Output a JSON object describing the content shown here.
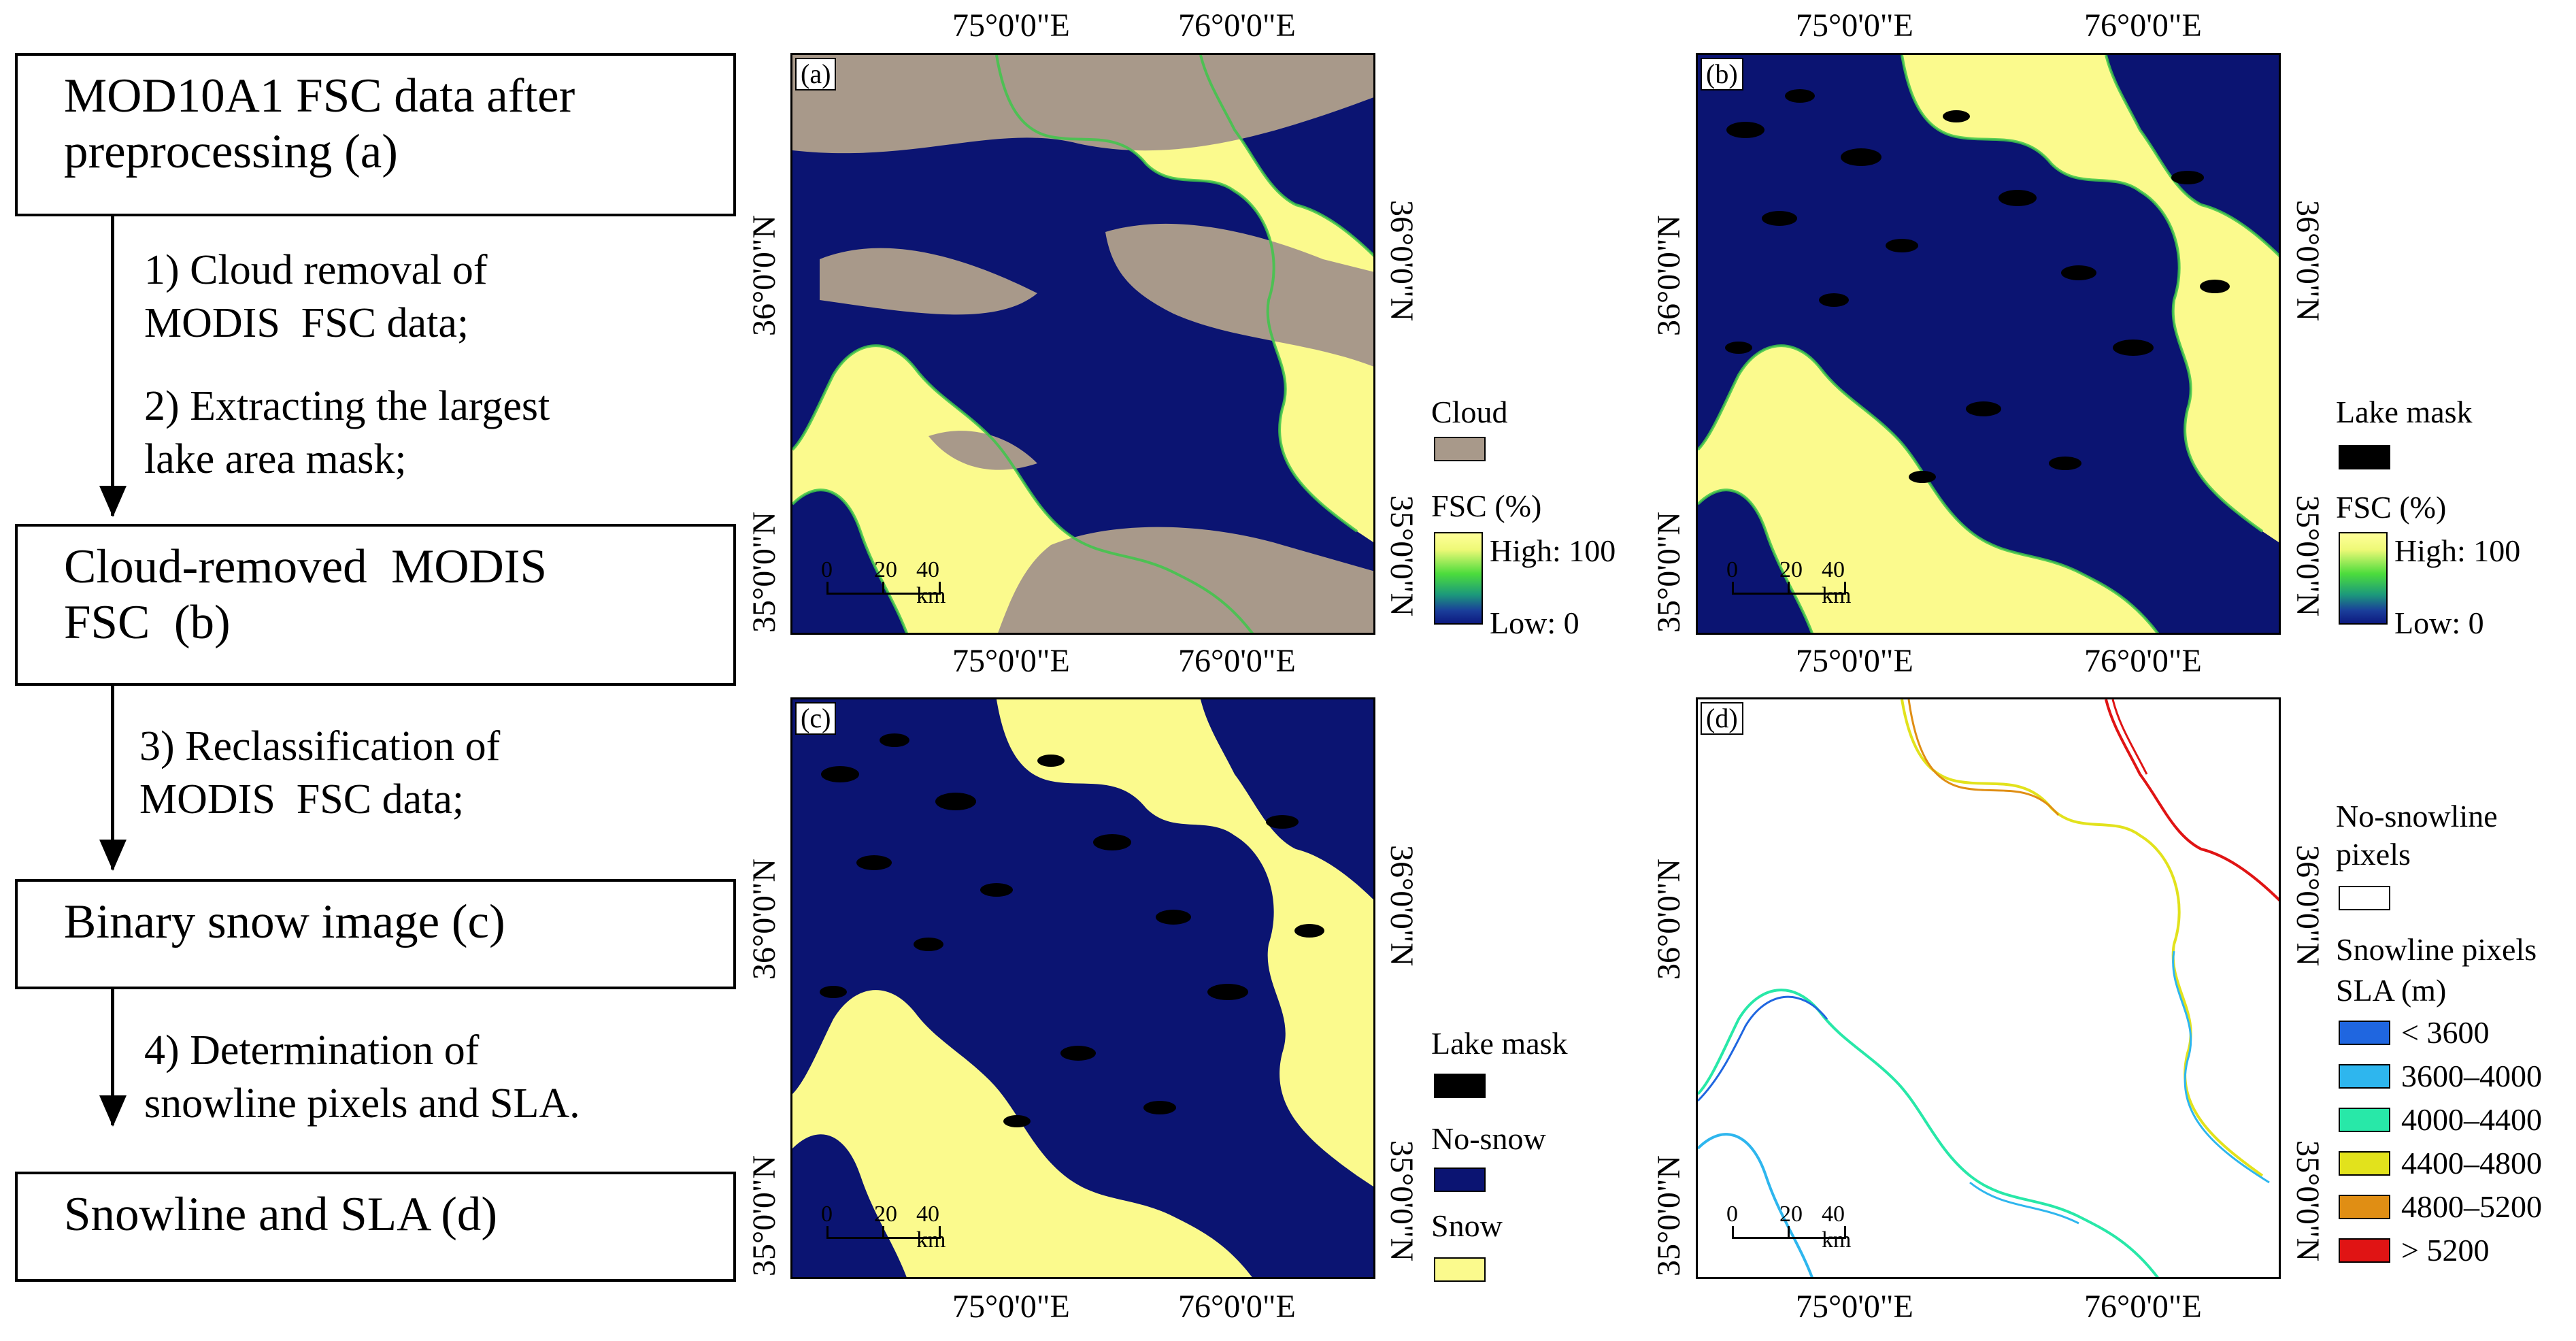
{
  "flow": {
    "box_a": "MOD10A1 FSC data after preprocessing (a)",
    "step1": "1) Cloud removal of\nMODIS  FSC data;",
    "step2": "2) Extracting the largest\nlake area mask;",
    "box_b": "Cloud-removed  MODIS\nFSC  (b)",
    "step3": "3) Reclassification of\nMODIS  FSC data;",
    "box_c": "Binary snow image (c)",
    "step4": "4) Determination of\nsnowline pixels and SLA.",
    "box_d": "Snowline and SLA  (d)"
  },
  "axes": {
    "lon1": "75°0'0\"E",
    "lon2": "76°0'0\"E",
    "lat1": "36°0'0\"N",
    "lat2": "35°0'0\"N"
  },
  "scalebar": {
    "t0": "0",
    "t1": "20",
    "t2": "40 km"
  },
  "panels": {
    "a": {
      "tag": "(a)",
      "legend": {
        "cloud": "Cloud",
        "fsc": "FSC (%)",
        "high": "High: 100",
        "low": "Low: 0"
      }
    },
    "b": {
      "tag": "(b)",
      "legend": {
        "lake": "Lake mask",
        "fsc": "FSC (%)",
        "high": "High: 100",
        "low": "Low: 0"
      }
    },
    "c": {
      "tag": "(c)",
      "legend": {
        "lake": "Lake mask",
        "nosnow": "No-snow",
        "snow": "Snow"
      }
    },
    "d": {
      "tag": "(d)",
      "legend": {
        "nosl": "No-snowline\npixels",
        "sl": "Snowline pixels",
        "sla": "SLA (m)",
        "classes": [
          {
            "label": "< 3600",
            "color": "#1f66e0"
          },
          {
            "label": "3600–4000",
            "color": "#2eb6ee"
          },
          {
            "label": "4000–4400",
            "color": "#28e8a8"
          },
          {
            "label": "4400–4800",
            "color": "#e2e21c"
          },
          {
            "label": "4800–5200",
            "color": "#e08e14"
          },
          {
            "label": "> 5200",
            "color": "#e01414"
          }
        ]
      }
    }
  },
  "colors": {
    "snow": "#fbfa8d",
    "nosnow": "#0b1472",
    "cloud": "#a8998a",
    "lake": "#000000"
  }
}
